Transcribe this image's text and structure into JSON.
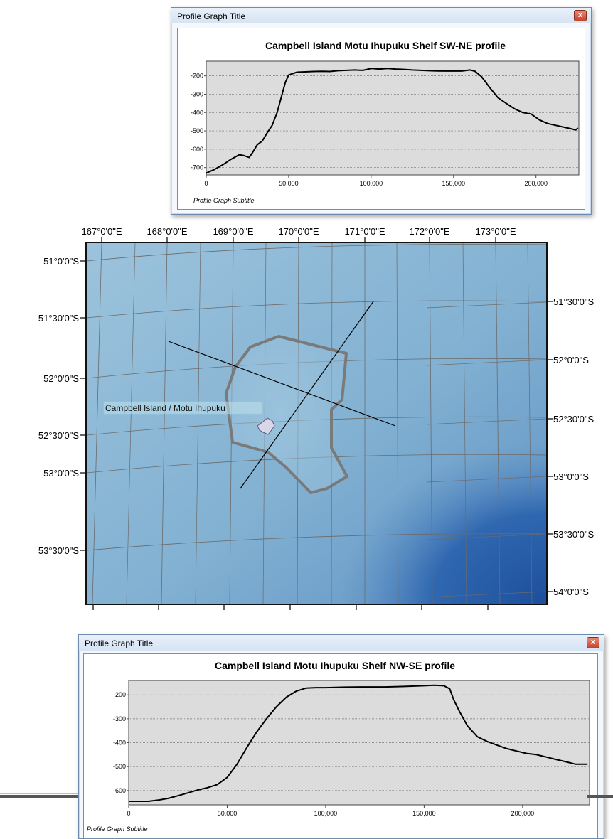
{
  "top_window": {
    "title": "Profile Graph Title",
    "close_label": "x",
    "subtitle": "Profile Graph Subtitle"
  },
  "bottom_window": {
    "title": "Profile Graph Title",
    "close_label": "x",
    "subtitle": "Profile Graph Subtitle"
  },
  "map": {
    "top_lon_labels": [
      "167°0'0\"E",
      "168°0'0\"E",
      "169°0'0\"E",
      "170°0'0\"E",
      "171°0'0\"E",
      "172°0'0\"E",
      "173°0'0\"E"
    ],
    "bottom_lon_labels": [
      "167°0'0\"E",
      "168°0'0\"E",
      "169°0'0\"E",
      "170°0'0\"E",
      "171°0'0\"E",
      "172°0'0\"E",
      "173°0'0\"E"
    ],
    "left_lat_labels": [
      "51°0'0\"S",
      "51°30'0\"S",
      "52°0'0\"S",
      "52°30'0\"S",
      "53°0'0\"S",
      "53°30'0\"S"
    ],
    "right_lat_labels": [
      "51°30'0\"S",
      "52°0'0\"S",
      "52°30'0\"S",
      "53°0'0\"S",
      "53°30'0\"S",
      "54°0'0\"S"
    ],
    "island_label": "Campbell Island / Motu Ihupuku",
    "colors": {
      "sea_light": "#8fbad6",
      "sea_mid": "#6f9fc7",
      "sea_deep": "#2f5fa8",
      "shelf_outline": "#7a7a7a",
      "grid": "#6b6b6b"
    }
  },
  "chart_data": [
    {
      "type": "line",
      "title": "Campbell Island Motu Ihupuku Shelf SW-NE profile",
      "subtitle": "Profile Graph Subtitle",
      "xlim": [
        0,
        226000
      ],
      "ylim": [
        -740,
        -120
      ],
      "xticks": [
        0,
        50000,
        100000,
        150000,
        200000
      ],
      "xtick_labels": [
        "0",
        "50,000",
        "100,000",
        "150,000",
        "200,000"
      ],
      "yticks": [
        -200,
        -300,
        -400,
        -500,
        -600,
        -700
      ],
      "ytick_labels": [
        "-200",
        "-300",
        "-400",
        "-500",
        "-600",
        "-700"
      ],
      "grid": true,
      "series": [
        {
          "x": [
            0,
            5000,
            10000,
            15000,
            20000,
            23000,
            26000,
            28000,
            31000,
            34000,
            37000,
            40000,
            43000,
            46000,
            48000,
            50000,
            55000,
            60000,
            65000,
            70000,
            75000,
            80000,
            85000,
            90000,
            95000,
            100000,
            105000,
            110000,
            115000,
            120000,
            125000,
            130000,
            135000,
            140000,
            145000,
            150000,
            155000,
            160000,
            163000,
            167000,
            172000,
            177000,
            182000,
            187000,
            192000,
            197000,
            202000,
            207000,
            212000,
            217000,
            222000,
            224000,
            225500
          ],
          "y": [
            -730,
            -710,
            -685,
            -655,
            -630,
            -635,
            -645,
            -620,
            -575,
            -555,
            -510,
            -470,
            -400,
            -300,
            -235,
            -195,
            -180,
            -178,
            -176,
            -175,
            -176,
            -172,
            -170,
            -168,
            -170,
            -160,
            -163,
            -160,
            -163,
            -165,
            -168,
            -170,
            -172,
            -173,
            -174,
            -174,
            -174,
            -168,
            -175,
            -205,
            -265,
            -320,
            -350,
            -380,
            -400,
            -408,
            -440,
            -460,
            -470,
            -480,
            -490,
            -495,
            -485
          ]
        }
      ]
    },
    {
      "type": "line",
      "title": "Campbell Island Motu Ihupuku Shelf NW-SE profile",
      "subtitle": "Profile Graph Subtitle",
      "xlim": [
        0,
        234000
      ],
      "ylim": [
        -660,
        -140
      ],
      "xticks": [
        0,
        50000,
        100000,
        150000,
        200000
      ],
      "xtick_labels": [
        "0",
        "50,000",
        "100,000",
        "150,000",
        "200,000"
      ],
      "yticks": [
        -200,
        -300,
        -400,
        -500,
        -600
      ],
      "ytick_labels": [
        "-200",
        "-300",
        "-400",
        "-500",
        "-600"
      ],
      "grid": true,
      "series": [
        {
          "x": [
            0,
            5000,
            10000,
            15000,
            20000,
            25000,
            30000,
            35000,
            40000,
            45000,
            50000,
            55000,
            60000,
            65000,
            70000,
            75000,
            80000,
            85000,
            90000,
            95000,
            100000,
            110000,
            120000,
            130000,
            140000,
            150000,
            155000,
            160000,
            163000,
            165000,
            168000,
            172000,
            177000,
            182000,
            187000,
            192000,
            197000,
            202000,
            207000,
            212000,
            217000,
            222000,
            227000,
            233000
          ],
          "y": [
            -645,
            -645,
            -645,
            -640,
            -633,
            -622,
            -610,
            -598,
            -588,
            -575,
            -545,
            -490,
            -420,
            -355,
            -300,
            -250,
            -210,
            -185,
            -172,
            -170,
            -170,
            -168,
            -167,
            -167,
            -165,
            -162,
            -160,
            -162,
            -175,
            -220,
            -270,
            -330,
            -375,
            -395,
            -410,
            -425,
            -435,
            -445,
            -450,
            -460,
            -470,
            -480,
            -490,
            -490
          ]
        }
      ]
    }
  ]
}
